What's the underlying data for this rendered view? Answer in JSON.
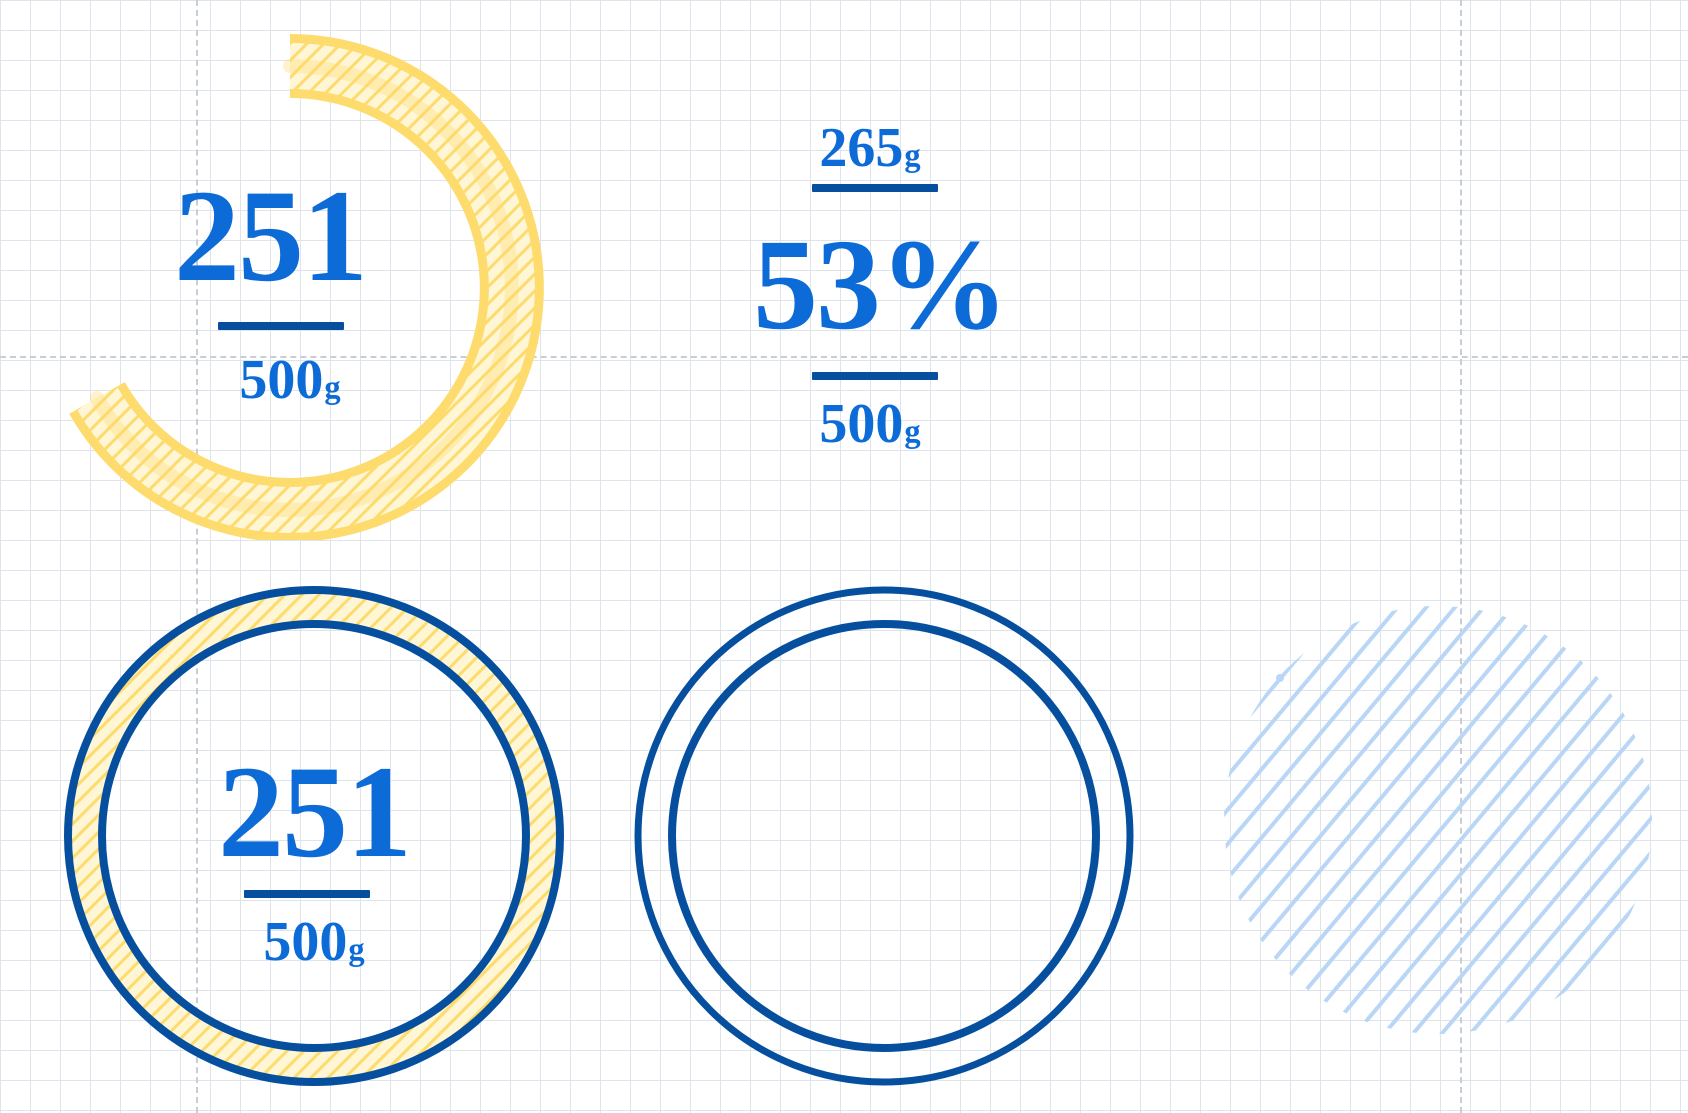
{
  "colors": {
    "accent_yellow": "#fedb6d",
    "accent_blue": "#0c6bd6",
    "outline_blue": "#064f9e",
    "hatch_light_blue": "#b9d6f6"
  },
  "widgets": {
    "yellow_arc_meter": {
      "value": "251",
      "total": "500",
      "unit": "g"
    },
    "percentage_readout": {
      "current": "265",
      "current_unit": "g",
      "percent": "53%",
      "total": "500",
      "total_unit": "g"
    },
    "filled_ring_meter": {
      "value": "251",
      "total": "500",
      "unit": "g"
    },
    "empty_ring": {},
    "hatched_circle": {}
  }
}
